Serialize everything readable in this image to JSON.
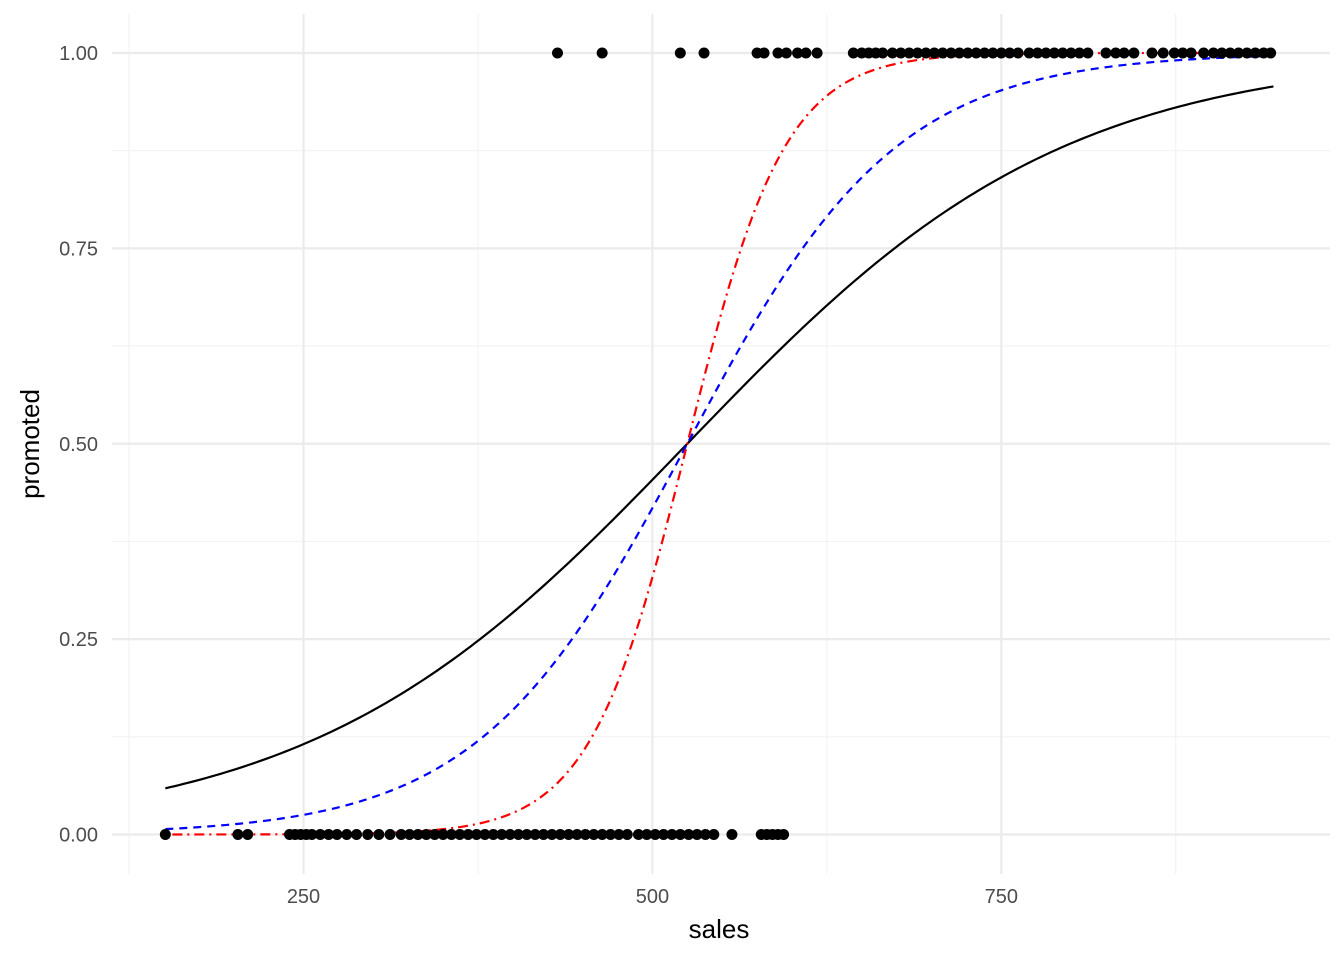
{
  "chart_data": {
    "type": "scatter",
    "title": "",
    "xlabel": "sales",
    "ylabel": "promoted",
    "xlim": [
      151,
      945
    ],
    "ylim": [
      0,
      1
    ],
    "x_ticks": [
      250,
      500,
      750
    ],
    "x_tick_labels": [
      "250",
      "500",
      "750"
    ],
    "y_ticks": [
      0,
      0.25,
      0.5,
      0.75,
      1
    ],
    "y_tick_labels": [
      "0.00",
      "0.25",
      "0.50",
      "0.75",
      "1.00"
    ],
    "grid": true,
    "legend": "none",
    "points": [
      {
        "x": 151,
        "y": 0
      },
      {
        "x": 203,
        "y": 0
      },
      {
        "x": 210,
        "y": 0
      },
      {
        "x": 240,
        "y": 0
      },
      {
        "x": 244,
        "y": 0
      },
      {
        "x": 248,
        "y": 0
      },
      {
        "x": 252,
        "y": 0
      },
      {
        "x": 256,
        "y": 0
      },
      {
        "x": 262,
        "y": 0
      },
      {
        "x": 268,
        "y": 0
      },
      {
        "x": 274,
        "y": 0
      },
      {
        "x": 281,
        "y": 0
      },
      {
        "x": 288,
        "y": 0
      },
      {
        "x": 296,
        "y": 0
      },
      {
        "x": 304,
        "y": 0
      },
      {
        "x": 312,
        "y": 0
      },
      {
        "x": 320,
        "y": 0
      },
      {
        "x": 326,
        "y": 0
      },
      {
        "x": 332,
        "y": 0
      },
      {
        "x": 338,
        "y": 0
      },
      {
        "x": 344,
        "y": 0
      },
      {
        "x": 350,
        "y": 0
      },
      {
        "x": 356,
        "y": 0
      },
      {
        "x": 362,
        "y": 0
      },
      {
        "x": 368,
        "y": 0
      },
      {
        "x": 374,
        "y": 0
      },
      {
        "x": 380,
        "y": 0
      },
      {
        "x": 386,
        "y": 0
      },
      {
        "x": 392,
        "y": 0
      },
      {
        "x": 398,
        "y": 0
      },
      {
        "x": 404,
        "y": 0
      },
      {
        "x": 410,
        "y": 0
      },
      {
        "x": 416,
        "y": 0
      },
      {
        "x": 422,
        "y": 0
      },
      {
        "x": 428,
        "y": 0
      },
      {
        "x": 434,
        "y": 0
      },
      {
        "x": 440,
        "y": 0
      },
      {
        "x": 446,
        "y": 0
      },
      {
        "x": 452,
        "y": 0
      },
      {
        "x": 458,
        "y": 0
      },
      {
        "x": 464,
        "y": 0
      },
      {
        "x": 470,
        "y": 0
      },
      {
        "x": 476,
        "y": 0
      },
      {
        "x": 482,
        "y": 0
      },
      {
        "x": 490,
        "y": 0
      },
      {
        "x": 496,
        "y": 0
      },
      {
        "x": 502,
        "y": 0
      },
      {
        "x": 508,
        "y": 0
      },
      {
        "x": 514,
        "y": 0
      },
      {
        "x": 520,
        "y": 0
      },
      {
        "x": 526,
        "y": 0
      },
      {
        "x": 532,
        "y": 0
      },
      {
        "x": 538,
        "y": 0
      },
      {
        "x": 544,
        "y": 0
      },
      {
        "x": 557,
        "y": 0
      },
      {
        "x": 578,
        "y": 0
      },
      {
        "x": 582,
        "y": 0
      },
      {
        "x": 586,
        "y": 0
      },
      {
        "x": 590,
        "y": 0
      },
      {
        "x": 594,
        "y": 0
      },
      {
        "x": 432,
        "y": 1
      },
      {
        "x": 464,
        "y": 1
      },
      {
        "x": 520,
        "y": 1
      },
      {
        "x": 537,
        "y": 1
      },
      {
        "x": 575,
        "y": 1
      },
      {
        "x": 580,
        "y": 1
      },
      {
        "x": 590,
        "y": 1
      },
      {
        "x": 596,
        "y": 1
      },
      {
        "x": 604,
        "y": 1
      },
      {
        "x": 610,
        "y": 1
      },
      {
        "x": 618,
        "y": 1
      },
      {
        "x": 644,
        "y": 1
      },
      {
        "x": 650,
        "y": 1
      },
      {
        "x": 655,
        "y": 1
      },
      {
        "x": 660,
        "y": 1
      },
      {
        "x": 665,
        "y": 1
      },
      {
        "x": 672,
        "y": 1
      },
      {
        "x": 678,
        "y": 1
      },
      {
        "x": 684,
        "y": 1
      },
      {
        "x": 690,
        "y": 1
      },
      {
        "x": 696,
        "y": 1
      },
      {
        "x": 702,
        "y": 1
      },
      {
        "x": 708,
        "y": 1
      },
      {
        "x": 714,
        "y": 1
      },
      {
        "x": 720,
        "y": 1
      },
      {
        "x": 726,
        "y": 1
      },
      {
        "x": 732,
        "y": 1
      },
      {
        "x": 738,
        "y": 1
      },
      {
        "x": 744,
        "y": 1
      },
      {
        "x": 750,
        "y": 1
      },
      {
        "x": 756,
        "y": 1
      },
      {
        "x": 762,
        "y": 1
      },
      {
        "x": 770,
        "y": 1
      },
      {
        "x": 776,
        "y": 1
      },
      {
        "x": 782,
        "y": 1
      },
      {
        "x": 788,
        "y": 1
      },
      {
        "x": 794,
        "y": 1
      },
      {
        "x": 800,
        "y": 1
      },
      {
        "x": 806,
        "y": 1
      },
      {
        "x": 812,
        "y": 1
      },
      {
        "x": 825,
        "y": 1
      },
      {
        "x": 832,
        "y": 1
      },
      {
        "x": 838,
        "y": 1
      },
      {
        "x": 845,
        "y": 1
      },
      {
        "x": 858,
        "y": 1
      },
      {
        "x": 866,
        "y": 1
      },
      {
        "x": 874,
        "y": 1
      },
      {
        "x": 880,
        "y": 1
      },
      {
        "x": 886,
        "y": 1
      },
      {
        "x": 895,
        "y": 1
      },
      {
        "x": 902,
        "y": 1
      },
      {
        "x": 908,
        "y": 1
      },
      {
        "x": 914,
        "y": 1
      },
      {
        "x": 920,
        "y": 1
      },
      {
        "x": 926,
        "y": 1
      },
      {
        "x": 932,
        "y": 1
      },
      {
        "x": 938,
        "y": 1
      },
      {
        "x": 943,
        "y": 1
      }
    ],
    "curves": [
      {
        "color": "#000000",
        "dash": "solid",
        "midpoint": 525,
        "slope": 0.0074
      },
      {
        "color": "#0000ff",
        "dash": "dashed",
        "midpoint": 525,
        "slope": 0.0133
      },
      {
        "color": "#ff0000",
        "dash": "dotdash",
        "midpoint": 525,
        "slope": 0.0285
      }
    ],
    "colors": {
      "points": "#000000"
    }
  }
}
